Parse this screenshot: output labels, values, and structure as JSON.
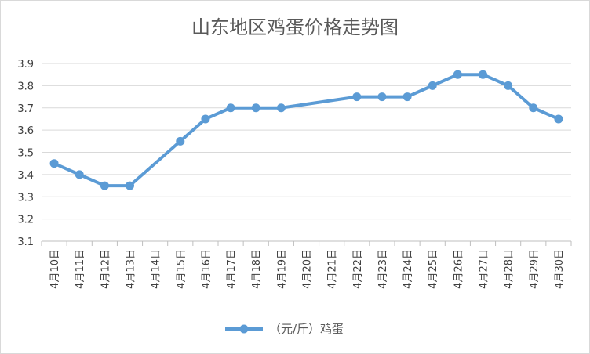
{
  "chart_data": {
    "type": "line",
    "title": "山东地区鸡蛋价格走势图",
    "xlabel": "",
    "ylabel": "",
    "categories": [
      "4月10日",
      "4月11日",
      "4月12日",
      "4月13日",
      "4月14日",
      "4月15日",
      "4月16日",
      "4月17日",
      "4月18日",
      "4月19日",
      "4月20日",
      "4月21日",
      "4月22日",
      "4月23日",
      "4月24日",
      "4月25日",
      "4月26日",
      "4月27日",
      "4月28日",
      "4月29日",
      "4月30日"
    ],
    "series": [
      {
        "name": "（元/斤）鸡蛋",
        "values": [
          3.45,
          3.4,
          3.35,
          3.35,
          null,
          3.55,
          3.65,
          3.7,
          3.7,
          3.7,
          null,
          null,
          3.75,
          3.75,
          3.75,
          3.8,
          3.85,
          3.85,
          3.8,
          3.7,
          3.65
        ]
      }
    ],
    "ylim": [
      3.1,
      3.9
    ],
    "yticks": [
      "3.1",
      "3.2",
      "3.3",
      "3.4",
      "3.5",
      "3.6",
      "3.7",
      "3.8",
      "3.9"
    ],
    "grid": true,
    "legend": "bottom",
    "colors": {
      "line": "#5b9bd5",
      "grid": "#d9d9d9",
      "axis": "#bfbfbf"
    }
  }
}
